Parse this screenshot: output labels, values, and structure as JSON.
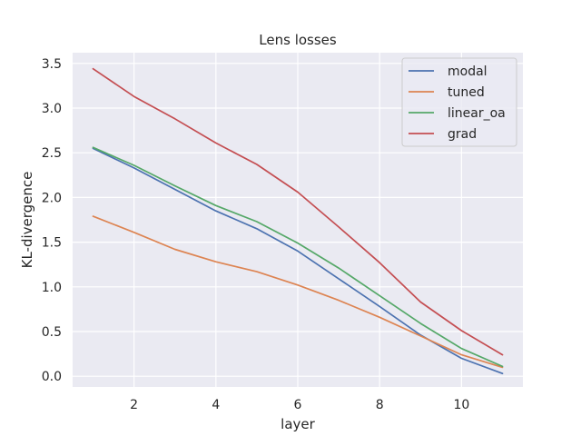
{
  "chart_data": {
    "type": "line",
    "title": "Lens losses",
    "xlabel": "layer",
    "ylabel": "KL-divergence",
    "xlim": [
      0.5,
      11.5
    ],
    "ylim": [
      -0.12,
      3.62
    ],
    "xticks": [
      2,
      4,
      6,
      8,
      10
    ],
    "yticks": [
      0.0,
      0.5,
      1.0,
      1.5,
      2.0,
      2.5,
      3.0,
      3.5
    ],
    "grid": true,
    "legend_position": "top-right",
    "x": [
      1,
      2,
      3,
      4,
      5,
      6,
      7,
      8,
      9,
      10,
      11
    ],
    "series": [
      {
        "name": "modal",
        "color": "#4c72b0",
        "values": [
          2.55,
          2.33,
          2.09,
          1.85,
          1.65,
          1.4,
          1.09,
          0.78,
          0.46,
          0.2,
          0.03
        ]
      },
      {
        "name": "tuned",
        "color": "#dd8452",
        "values": [
          1.79,
          1.61,
          1.42,
          1.28,
          1.17,
          1.02,
          0.85,
          0.66,
          0.45,
          0.24,
          0.1
        ]
      },
      {
        "name": "linear_oa",
        "color": "#55a868",
        "values": [
          2.56,
          2.36,
          2.13,
          1.91,
          1.73,
          1.49,
          1.21,
          0.9,
          0.59,
          0.31,
          0.11
        ]
      },
      {
        "name": "grad",
        "color": "#c44e52",
        "values": [
          3.44,
          3.13,
          2.88,
          2.61,
          2.37,
          2.06,
          1.67,
          1.27,
          0.83,
          0.51,
          0.24
        ]
      }
    ]
  }
}
